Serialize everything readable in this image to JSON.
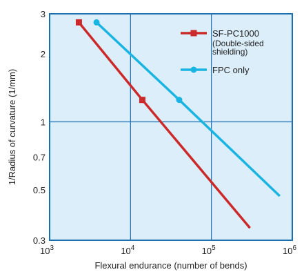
{
  "chart_data": {
    "type": "line",
    "title": "",
    "xlabel": "Flexural endurance (number of bends)",
    "ylabel": "1/Radius of curvature (1/mm)",
    "x_scale": "log",
    "y_scale": "log",
    "xlim": [
      1000,
      1000000
    ],
    "ylim": [
      0.3,
      3
    ],
    "x_ticks": [
      {
        "value": 1000,
        "base": "10",
        "exp": "3"
      },
      {
        "value": 10000,
        "base": "10",
        "exp": "4"
      },
      {
        "value": 100000,
        "base": "10",
        "exp": "5"
      },
      {
        "value": 1000000,
        "base": "10",
        "exp": "6"
      }
    ],
    "y_ticks": [
      {
        "value": 0.3,
        "label": "0.3"
      },
      {
        "value": 0.5,
        "label": "0.5"
      },
      {
        "value": 0.7,
        "label": "0.7"
      },
      {
        "value": 1,
        "label": "1"
      },
      {
        "value": 2,
        "label": "2"
      },
      {
        "value": 3,
        "label": "3"
      }
    ],
    "grid_x": [
      10000,
      100000
    ],
    "grid_y": [
      1
    ],
    "grid": true,
    "legend_position": "top-right",
    "series": [
      {
        "name": "SF-PC1000",
        "name_lines": [
          "SF-PC1000",
          "(Double-sided",
          "shielding)"
        ],
        "color": "#cc2a2a",
        "marker": "square",
        "x": [
          2300,
          14000,
          300000
        ],
        "y": [
          2.75,
          1.25,
          0.34
        ],
        "marker_x": [
          2300,
          14000
        ],
        "marker_y": [
          2.75,
          1.25
        ]
      },
      {
        "name": "FPC only",
        "name_lines": [
          "FPC only"
        ],
        "color": "#1ab4e2",
        "marker": "circle",
        "x": [
          3800,
          40000,
          700000
        ],
        "y": [
          2.75,
          1.25,
          0.47
        ],
        "marker_x": [
          3800,
          40000
        ],
        "marker_y": [
          2.75,
          1.25
        ]
      }
    ],
    "colors": {
      "plot_background": "#dbeef9",
      "grid": "#1a6fb0",
      "frame": "#1a6fb0"
    }
  }
}
